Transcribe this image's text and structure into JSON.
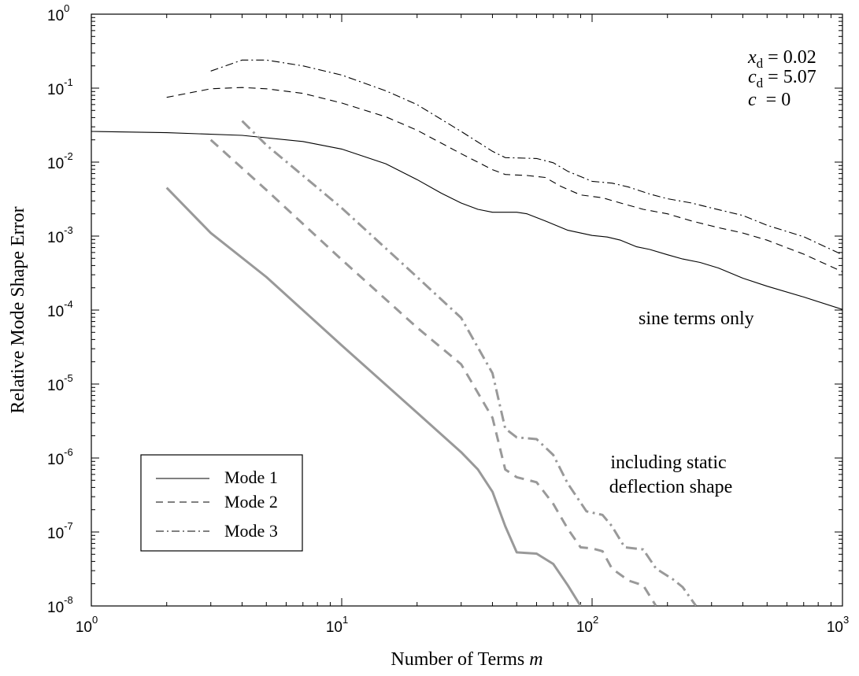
{
  "chart_data": {
    "type": "line",
    "xscale": "log",
    "yscale": "log",
    "xlim": [
      1,
      1000
    ],
    "ylim": [
      1e-08,
      1
    ],
    "grid": false,
    "xlabel": "Number of Terms m",
    "xlabel_main": "Number of Terms ",
    "xlabel_var": "m",
    "ylabel": "Relative Mode Shape Error",
    "x_ticks": [
      {
        "base": "10",
        "exp": "0",
        "value": 1
      },
      {
        "base": "10",
        "exp": "1",
        "value": 10
      },
      {
        "base": "10",
        "exp": "2",
        "value": 100
      },
      {
        "base": "10",
        "exp": "3",
        "value": 1000
      }
    ],
    "y_ticks": [
      {
        "base": "10",
        "exp": "0",
        "value": 1
      },
      {
        "base": "10",
        "exp": "-1",
        "value": 0.1
      },
      {
        "base": "10",
        "exp": "-2",
        "value": 0.01
      },
      {
        "base": "10",
        "exp": "-3",
        "value": 0.001
      },
      {
        "base": "10",
        "exp": "-4",
        "value": 0.0001
      },
      {
        "base": "10",
        "exp": "-5",
        "value": 1e-05
      },
      {
        "base": "10",
        "exp": "-6",
        "value": 1e-06
      },
      {
        "base": "10",
        "exp": "-7",
        "value": 1e-07
      },
      {
        "base": "10",
        "exp": "-8",
        "value": 1e-08
      }
    ],
    "params": [
      {
        "sym": "x",
        "sub": "d",
        "rest": " = 0.02"
      },
      {
        "sym": "c",
        "sub": "d",
        "rest": " = 5.07"
      },
      {
        "sym": "c",
        "sub": "",
        "rest": "  = 0"
      }
    ],
    "annotations": {
      "sine": "sine terms only",
      "static_line1": "including static",
      "static_line2": "deflection shape"
    },
    "legend": {
      "placement": "bottom-left",
      "entries": [
        "Mode 1",
        "Mode 2",
        "Mode 3"
      ]
    },
    "series": [
      {
        "name": "Mode 1",
        "group": "sine terms only",
        "color": "#000000",
        "dash": "solid",
        "points": [
          [
            1,
            0.026
          ],
          [
            2,
            0.025
          ],
          [
            4,
            0.023
          ],
          [
            7,
            0.019
          ],
          [
            10,
            0.015
          ],
          [
            15,
            0.0095
          ],
          [
            20,
            0.0058
          ],
          [
            25,
            0.0038
          ],
          [
            30,
            0.0028
          ],
          [
            35,
            0.0023
          ],
          [
            40,
            0.0021
          ],
          [
            50,
            0.0021
          ],
          [
            55,
            0.002
          ],
          [
            65,
            0.0016
          ],
          [
            80,
            0.0012
          ],
          [
            100,
            0.00102
          ],
          [
            115,
            0.00097
          ],
          [
            130,
            0.00088
          ],
          [
            150,
            0.00072
          ],
          [
            170,
            0.00066
          ],
          [
            200,
            0.00056
          ],
          [
            230,
            0.00049
          ],
          [
            270,
            0.00044
          ],
          [
            320,
            0.00037
          ],
          [
            400,
            0.00027
          ],
          [
            500,
            0.00021
          ],
          [
            700,
            0.00015
          ],
          [
            1000,
            0.000102
          ]
        ]
      },
      {
        "name": "Mode 2",
        "group": "sine terms only",
        "color": "#000000",
        "dash": "dash",
        "points": [
          [
            2,
            0.075
          ],
          [
            3,
            0.098
          ],
          [
            4,
            0.102
          ],
          [
            5,
            0.098
          ],
          [
            7,
            0.085
          ],
          [
            10,
            0.063
          ],
          [
            15,
            0.041
          ],
          [
            20,
            0.027
          ],
          [
            30,
            0.013
          ],
          [
            40,
            0.0079
          ],
          [
            45,
            0.0068
          ],
          [
            55,
            0.0066
          ],
          [
            65,
            0.0062
          ],
          [
            75,
            0.0047
          ],
          [
            90,
            0.0036
          ],
          [
            110,
            0.0033
          ],
          [
            130,
            0.0028
          ],
          [
            160,
            0.0023
          ],
          [
            200,
            0.002
          ],
          [
            250,
            0.0016
          ],
          [
            320,
            0.0013
          ],
          [
            400,
            0.0011
          ],
          [
            500,
            0.00088
          ],
          [
            700,
            0.00057
          ],
          [
            1000,
            0.00033
          ]
        ]
      },
      {
        "name": "Mode 3",
        "group": "sine terms only",
        "color": "#000000",
        "dash": "dashdot",
        "points": [
          [
            3,
            0.17
          ],
          [
            4,
            0.24
          ],
          [
            5,
            0.24
          ],
          [
            7,
            0.2
          ],
          [
            10,
            0.15
          ],
          [
            15,
            0.092
          ],
          [
            20,
            0.06
          ],
          [
            30,
            0.026
          ],
          [
            40,
            0.014
          ],
          [
            45,
            0.0115
          ],
          [
            60,
            0.0112
          ],
          [
            70,
            0.0098
          ],
          [
            80,
            0.0075
          ],
          [
            100,
            0.0055
          ],
          [
            120,
            0.0052
          ],
          [
            140,
            0.0046
          ],
          [
            170,
            0.0037
          ],
          [
            200,
            0.0032
          ],
          [
            250,
            0.0028
          ],
          [
            300,
            0.0024
          ],
          [
            400,
            0.0019
          ],
          [
            500,
            0.0014
          ],
          [
            700,
            0.00098
          ],
          [
            1000,
            0.00056
          ]
        ]
      },
      {
        "name": "Mode 1",
        "group": "including static deflection shape",
        "color": "#999999",
        "dash": "solid",
        "points": [
          [
            2,
            0.0045
          ],
          [
            3,
            0.0011
          ],
          [
            5,
            0.00028
          ],
          [
            10,
            3.33e-05
          ],
          [
            20,
            4.1e-06
          ],
          [
            30,
            1.2e-06
          ],
          [
            35,
            7e-07
          ],
          [
            40,
            3.5e-07
          ],
          [
            45,
            1.2e-07
          ],
          [
            50,
            5.3e-08
          ],
          [
            55,
            5.2e-08
          ],
          [
            60,
            5.1e-08
          ],
          [
            70,
            3.7e-08
          ],
          [
            80,
            1.9e-08
          ],
          [
            90,
            1e-08
          ]
        ]
      },
      {
        "name": "Mode 2",
        "group": "including static deflection shape",
        "color": "#999999",
        "dash": "dash",
        "points": [
          [
            3,
            0.02
          ],
          [
            5,
            0.0042
          ],
          [
            10,
            0.00048
          ],
          [
            20,
            5.8e-05
          ],
          [
            30,
            1.85e-05
          ],
          [
            40,
            3.5e-06
          ],
          [
            45,
            7e-07
          ],
          [
            50,
            5.5e-07
          ],
          [
            60,
            4.7e-07
          ],
          [
            70,
            2.4e-07
          ],
          [
            80,
            1.1e-07
          ],
          [
            90,
            6.2e-08
          ],
          [
            100,
            6e-08
          ],
          [
            110,
            5.5e-08
          ],
          [
            120,
            3.2e-08
          ],
          [
            140,
            2.2e-08
          ],
          [
            160,
            1.9e-08
          ],
          [
            180,
            1e-08
          ]
        ]
      },
      {
        "name": "Mode 3",
        "group": "including static deflection shape",
        "color": "#999999",
        "dash": "dashdot",
        "points": [
          [
            4,
            0.036
          ],
          [
            5,
            0.017
          ],
          [
            10,
            0.0024
          ],
          [
            20,
            0.00028
          ],
          [
            30,
            7.85e-05
          ],
          [
            40,
            1.4e-05
          ],
          [
            45,
            2.5e-06
          ],
          [
            50,
            1.9e-06
          ],
          [
            60,
            1.8e-06
          ],
          [
            70,
            1.1e-06
          ],
          [
            80,
            4.5e-07
          ],
          [
            95,
            1.9e-07
          ],
          [
            110,
            1.7e-07
          ],
          [
            120,
            1.2e-07
          ],
          [
            135,
            6.2e-08
          ],
          [
            160,
            5.8e-08
          ],
          [
            180,
            3.2e-08
          ],
          [
            210,
            2.3e-08
          ],
          [
            230,
            1.8e-08
          ],
          [
            260,
            1e-08
          ]
        ]
      }
    ]
  }
}
